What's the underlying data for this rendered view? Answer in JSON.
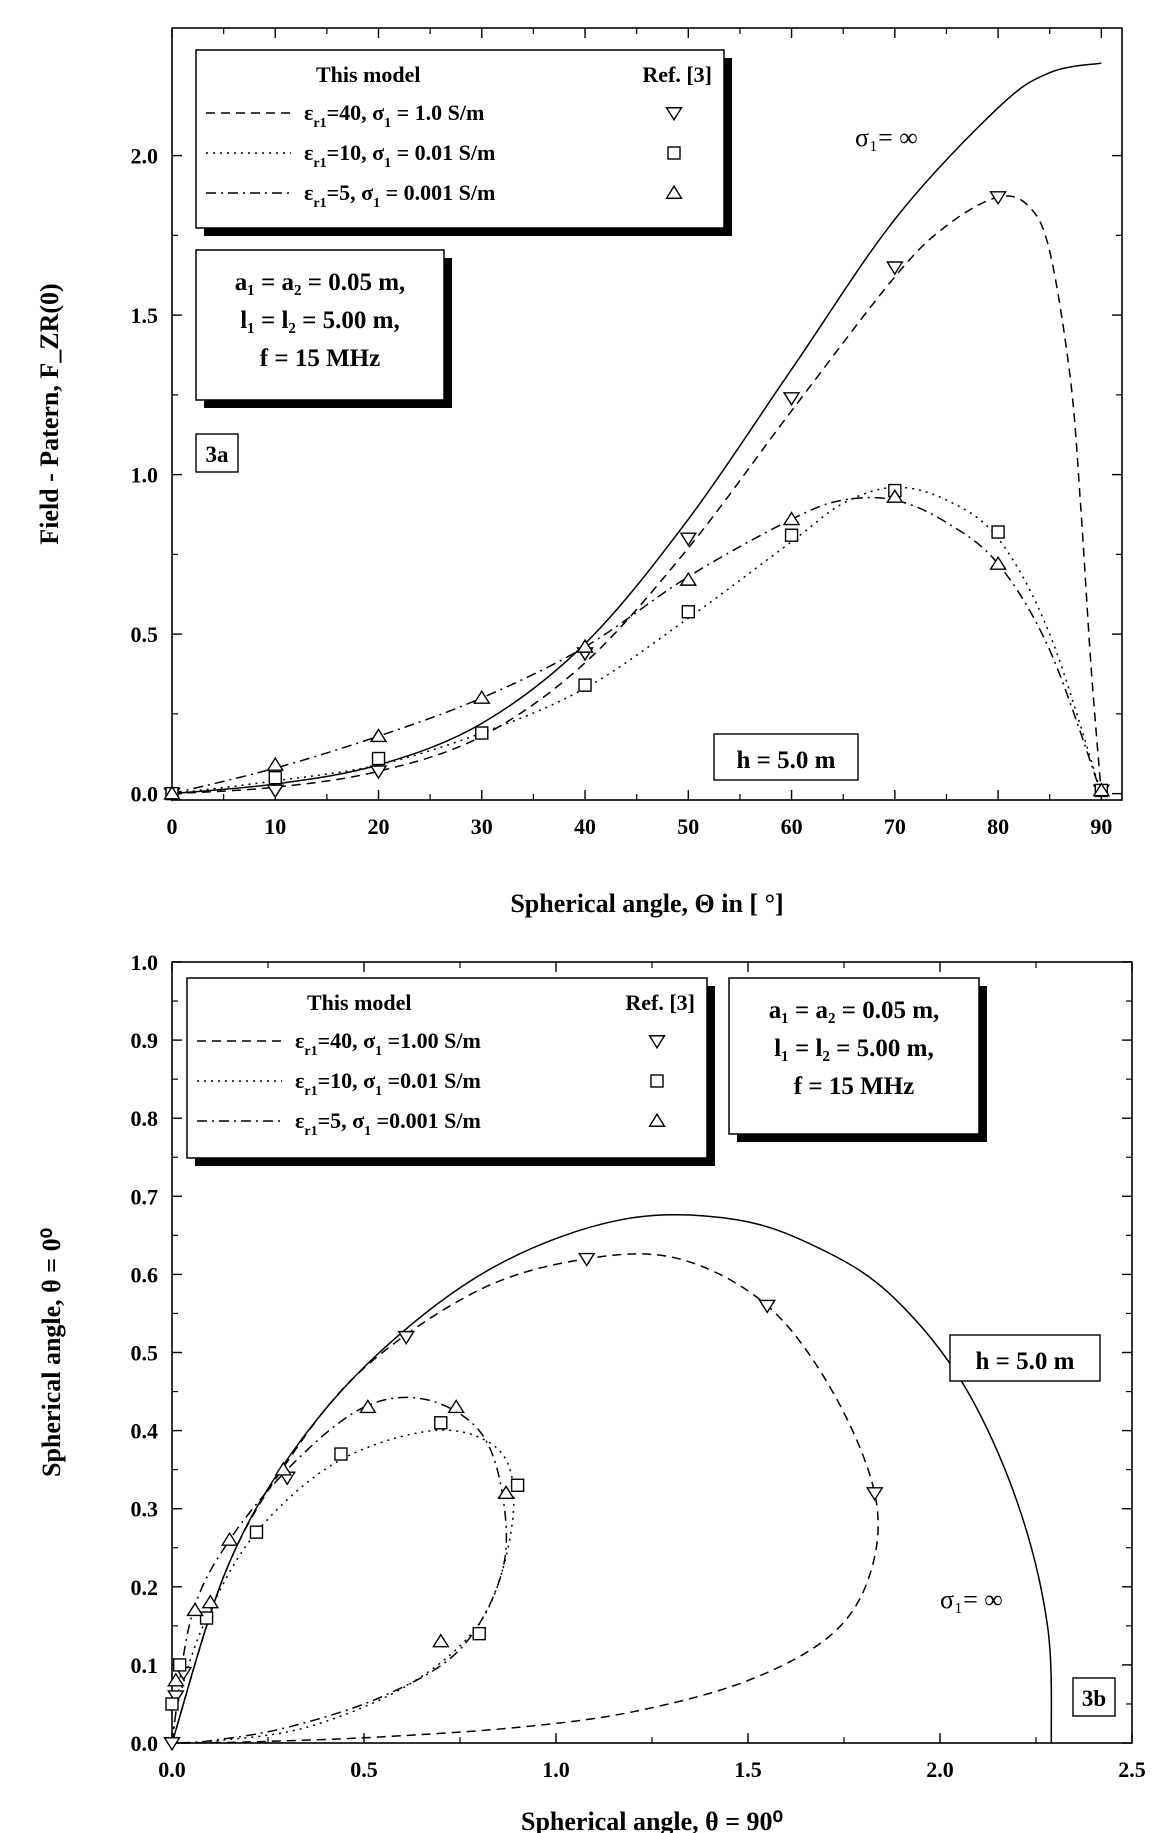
{
  "chart_data": [
    {
      "id": "3a",
      "type": "line",
      "panel_label": "3a",
      "xlabel": "Spherical angle, Θ in [ °]",
      "ylabel": "Field - Patern, F_ZR(0)",
      "xlim": [
        0,
        92
      ],
      "ylim": [
        -0.02,
        2.4
      ],
      "xticks": [
        0,
        10,
        20,
        30,
        40,
        50,
        60,
        70,
        80,
        90
      ],
      "yticks": [
        "0.0",
        "0.5",
        "1.0",
        "1.5",
        "2.0"
      ],
      "legend": {
        "header_model": "This model",
        "header_ref": "Ref. [3]",
        "entries": [
          {
            "eps": "=40",
            "sigma": "= 1.0 S/m",
            "style": "dashed",
            "marker": "triangle-down"
          },
          {
            "eps": "=10",
            "sigma": "= 0.01 S/m",
            "style": "dotted",
            "marker": "square"
          },
          {
            "eps": "=5",
            "sigma": "= 0.001 S/m",
            "style": "dashdot",
            "marker": "triangle-up"
          }
        ]
      },
      "info_box": [
        "a₁ = a₂ = 0.05 m,",
        "l₁ = l₂ = 5.00 m,",
        "f = 15 MHz"
      ],
      "h_label": "h = 5.0 m",
      "curve_label": "σ₁= ∞",
      "series": [
        {
          "name": "sigma-inf",
          "style": "solid",
          "x": [
            0,
            10,
            20,
            30,
            40,
            50,
            60,
            70,
            80,
            85,
            90
          ],
          "y": [
            0.0,
            0.03,
            0.09,
            0.22,
            0.47,
            0.86,
            1.33,
            1.8,
            2.15,
            2.26,
            2.29
          ]
        },
        {
          "name": "eps40",
          "style": "dashed",
          "x": [
            0,
            10,
            20,
            30,
            40,
            50,
            60,
            70,
            75,
            80,
            83,
            85,
            87,
            88,
            89,
            90
          ],
          "y": [
            0.0,
            0.02,
            0.07,
            0.18,
            0.41,
            0.77,
            1.2,
            1.62,
            1.78,
            1.87,
            1.84,
            1.7,
            1.3,
            0.9,
            0.4,
            0.0
          ]
        },
        {
          "name": "eps10",
          "style": "dotted",
          "x": [
            0,
            10,
            20,
            30,
            40,
            50,
            60,
            65,
            70,
            75,
            80,
            85,
            90
          ],
          "y": [
            0.0,
            0.04,
            0.09,
            0.19,
            0.33,
            0.55,
            0.79,
            0.91,
            0.96,
            0.92,
            0.8,
            0.5,
            0.0
          ]
        },
        {
          "name": "eps5",
          "style": "dashdot",
          "x": [
            0,
            10,
            20,
            30,
            40,
            50,
            60,
            65,
            70,
            75,
            80,
            85,
            90
          ],
          "y": [
            0.0,
            0.08,
            0.18,
            0.3,
            0.46,
            0.68,
            0.86,
            0.92,
            0.92,
            0.85,
            0.72,
            0.45,
            0.0
          ]
        }
      ],
      "markers": [
        {
          "series": "eps40",
          "marker": "triangle-down",
          "x": [
            0,
            10,
            20,
            40,
            50,
            60,
            70,
            80,
            90
          ],
          "y": [
            0.0,
            0.01,
            0.07,
            0.44,
            0.8,
            1.24,
            1.65,
            1.87,
            0.01
          ]
        },
        {
          "series": "eps10",
          "marker": "square",
          "x": [
            0,
            10,
            20,
            30,
            40,
            50,
            60,
            70,
            80,
            90
          ],
          "y": [
            0.0,
            0.05,
            0.11,
            0.19,
            0.34,
            0.57,
            0.81,
            0.95,
            0.82,
            0.01
          ]
        },
        {
          "series": "eps5",
          "marker": "triangle-up",
          "x": [
            0,
            10,
            20,
            30,
            40,
            50,
            60,
            70,
            80,
            90
          ],
          "y": [
            0.0,
            0.09,
            0.18,
            0.3,
            0.46,
            0.67,
            0.86,
            0.93,
            0.72,
            0.01
          ]
        }
      ]
    },
    {
      "id": "3b",
      "type": "line",
      "panel_label": "3b",
      "xlabel": "Spherical angle, θ = 90⁰",
      "ylabel": "Spherical angle, θ = 0⁰",
      "xlim": [
        0,
        2.5
      ],
      "ylim": [
        0,
        1.0
      ],
      "xticks": [
        "0.0",
        "0.5",
        "1.0",
        "1.5",
        "2.0",
        "2.5"
      ],
      "yticks": [
        "0.0",
        "0.1",
        "0.2",
        "0.3",
        "0.4",
        "0.5",
        "0.6",
        "0.7",
        "0.8",
        "0.9",
        "1.0"
      ],
      "legend": {
        "header_model": "This model",
        "header_ref": "Ref. [3]",
        "entries": [
          {
            "eps": "=40",
            "sigma": "=1.00 S/m",
            "style": "dashed",
            "marker": "triangle-down"
          },
          {
            "eps": "=10",
            "sigma": "=0.01 S/m",
            "style": "dotted",
            "marker": "square"
          },
          {
            "eps": "=5",
            "sigma": "=0.001 S/m",
            "style": "dashdot",
            "marker": "triangle-up"
          }
        ]
      },
      "info_box": [
        "a₁ = a₂ = 0.05 m,",
        "l₁ = l₂ = 5.00 m,",
        "f = 15 MHz"
      ],
      "h_label": "h = 5.0 m",
      "curve_label": "σ₁= ∞",
      "series": [
        {
          "name": "sigma-inf",
          "style": "solid",
          "x": [
            0,
            0.14,
            0.31,
            0.54,
            0.84,
            1.17,
            1.47,
            1.7,
            1.88,
            2.06,
            2.2,
            2.28,
            2.29
          ],
          "y": [
            0,
            0.22,
            0.37,
            0.5,
            0.61,
            0.67,
            0.67,
            0.63,
            0.57,
            0.46,
            0.31,
            0.15,
            0
          ]
        },
        {
          "name": "eps40",
          "style": "dashed",
          "x": [
            0,
            0.14,
            0.3,
            0.5,
            0.8,
            1.08,
            1.32,
            1.55,
            1.72,
            1.83,
            1.82,
            1.72,
            1.5,
            1.2,
            0.9,
            0.55,
            0.25,
            0.05,
            0
          ],
          "y": [
            0,
            0.22,
            0.36,
            0.48,
            0.58,
            0.62,
            0.62,
            0.56,
            0.45,
            0.32,
            0.22,
            0.14,
            0.08,
            0.04,
            0.02,
            0.008,
            0.002,
            0.0,
            0
          ]
        },
        {
          "name": "eps10",
          "style": "dotted",
          "x": [
            0,
            0.02,
            0.09,
            0.22,
            0.43,
            0.68,
            0.84,
            0.89,
            0.86,
            0.78,
            0.6,
            0.35,
            0.12,
            0
          ],
          "y": [
            0,
            0.06,
            0.16,
            0.27,
            0.36,
            0.4,
            0.38,
            0.32,
            0.22,
            0.14,
            0.07,
            0.02,
            0.003,
            0
          ]
        },
        {
          "name": "eps5",
          "style": "dashdot",
          "x": [
            0,
            0.05,
            0.15,
            0.32,
            0.5,
            0.66,
            0.8,
            0.86,
            0.86,
            0.75,
            0.55,
            0.3,
            0.1,
            0
          ],
          "y": [
            0,
            0.16,
            0.26,
            0.36,
            0.43,
            0.44,
            0.4,
            0.32,
            0.22,
            0.12,
            0.06,
            0.02,
            0.003,
            0
          ]
        }
      ],
      "markers": [
        {
          "series": "eps40",
          "marker": "triangle-down",
          "x": [
            0,
            0.01,
            0.03,
            0.3,
            0.61,
            1.08,
            1.55,
            1.83
          ],
          "y": [
            0.0,
            0.06,
            0.09,
            0.34,
            0.52,
            0.62,
            0.56,
            0.32
          ]
        },
        {
          "series": "eps10",
          "marker": "square",
          "x": [
            0,
            0.02,
            0.09,
            0.22,
            0.44,
            0.7,
            0.9,
            0.8
          ],
          "y": [
            0.05,
            0.1,
            0.16,
            0.27,
            0.37,
            0.41,
            0.33,
            0.14
          ]
        },
        {
          "series": "eps5",
          "marker": "triangle-up",
          "x": [
            0.01,
            0.06,
            0.1,
            0.15,
            0.29,
            0.51,
            0.74,
            0.87,
            0.7
          ],
          "y": [
            0.08,
            0.17,
            0.18,
            0.26,
            0.35,
            0.43,
            0.43,
            0.32,
            0.13
          ]
        }
      ]
    }
  ]
}
